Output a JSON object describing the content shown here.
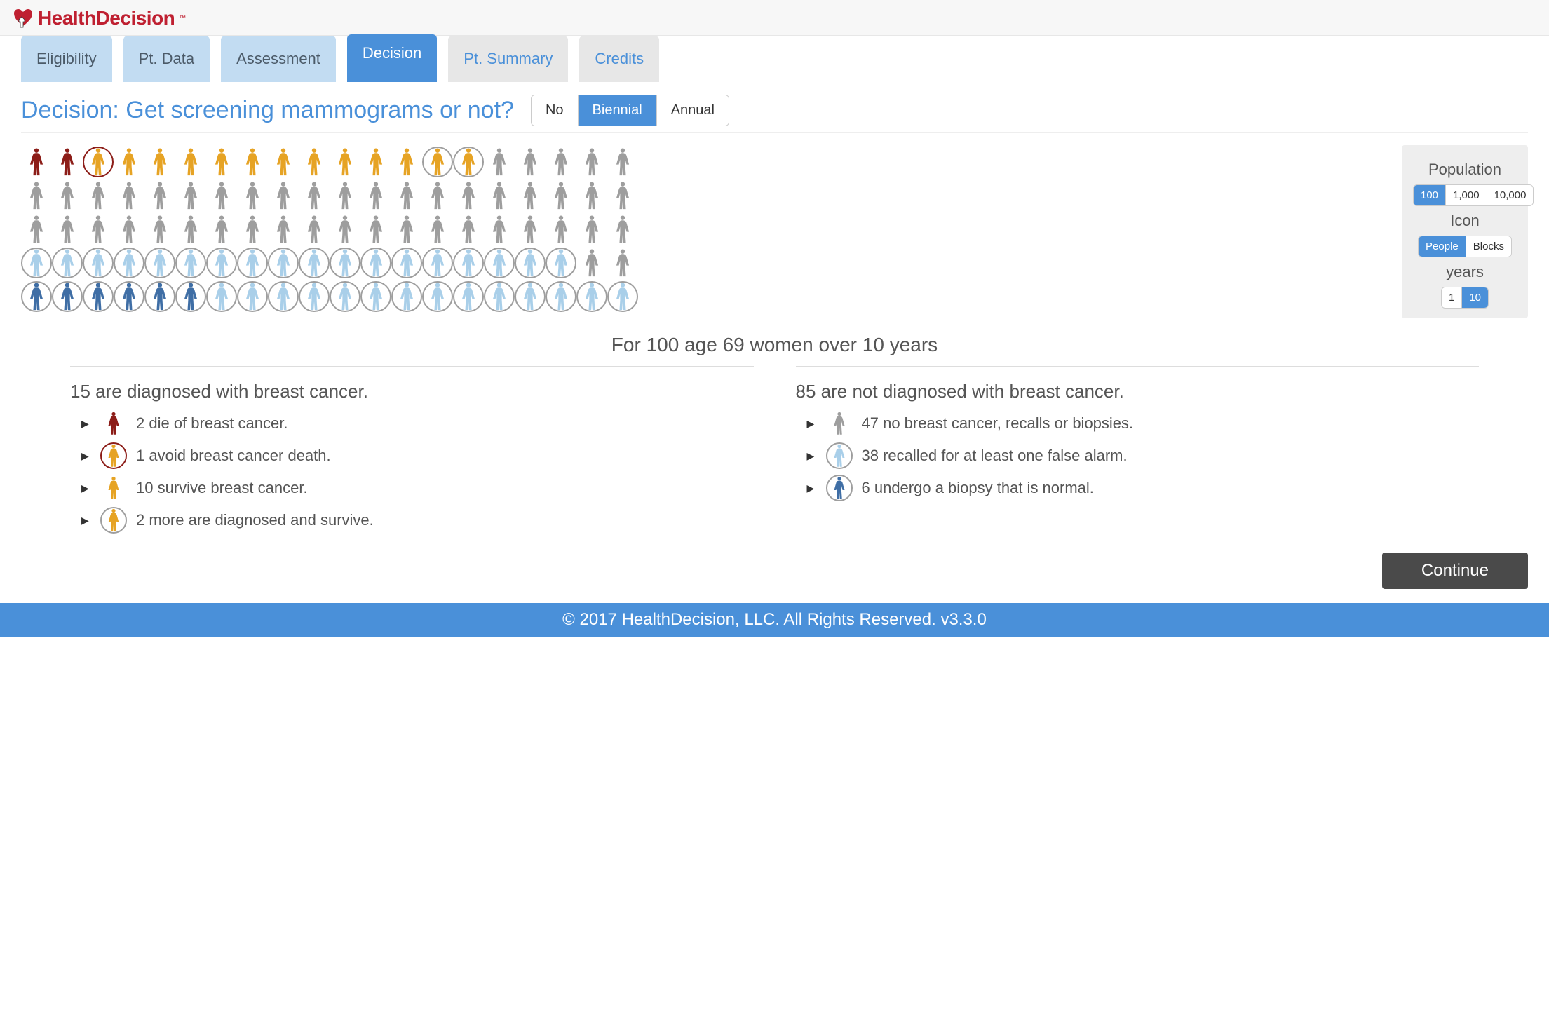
{
  "brand": {
    "name": "HealthDecision",
    "tm": "™"
  },
  "tabs": {
    "eligibility": "Eligibility",
    "ptdata": "Pt. Data",
    "assessment": "Assessment",
    "decision": "Decision",
    "ptsummary": "Pt. Summary",
    "credits": "Credits",
    "active": "decision"
  },
  "headline": "Decision: Get screening mammograms or not?",
  "frequency": {
    "options": {
      "no": "No",
      "biennial": "Biennial",
      "annual": "Annual"
    },
    "selected": "biennial"
  },
  "sidebar": {
    "population": {
      "label": "Population",
      "options": [
        "100",
        "1,000",
        "10,000"
      ],
      "selected": "100"
    },
    "icon": {
      "label": "Icon",
      "options": [
        "People",
        "Blocks"
      ],
      "selected": "People"
    },
    "years": {
      "label": "years",
      "options": [
        "1",
        "10"
      ],
      "selected": "10"
    }
  },
  "colors": {
    "die": "#8c1d18",
    "avoid": "#e6a324",
    "avoid_circle": "#8c1d18",
    "survive": "#e6a324",
    "diag_surv": "#e6a324",
    "none": "#9e9e9e",
    "recall": "#a9cfe9",
    "biopsy": "#3f6ea5"
  },
  "icon_array": {
    "cols": 20,
    "cells": [
      {
        "c": "die"
      },
      {
        "c": "die"
      },
      {
        "c": "avoid",
        "circ": "avoid_circle"
      },
      {
        "c": "survive"
      },
      {
        "c": "survive"
      },
      {
        "c": "survive"
      },
      {
        "c": "survive"
      },
      {
        "c": "survive"
      },
      {
        "c": "survive"
      },
      {
        "c": "survive"
      },
      {
        "c": "survive"
      },
      {
        "c": "survive"
      },
      {
        "c": "survive"
      },
      {
        "c": "diag_surv",
        "circ": "none"
      },
      {
        "c": "diag_surv",
        "circ": "none"
      },
      {
        "c": "none"
      },
      {
        "c": "none"
      },
      {
        "c": "none"
      },
      {
        "c": "none"
      },
      {
        "c": "none"
      },
      {
        "c": "none"
      },
      {
        "c": "none"
      },
      {
        "c": "none"
      },
      {
        "c": "none"
      },
      {
        "c": "none"
      },
      {
        "c": "none"
      },
      {
        "c": "none"
      },
      {
        "c": "none"
      },
      {
        "c": "none"
      },
      {
        "c": "none"
      },
      {
        "c": "none"
      },
      {
        "c": "none"
      },
      {
        "c": "none"
      },
      {
        "c": "none"
      },
      {
        "c": "none"
      },
      {
        "c": "none"
      },
      {
        "c": "none"
      },
      {
        "c": "none"
      },
      {
        "c": "none"
      },
      {
        "c": "none"
      },
      {
        "c": "none"
      },
      {
        "c": "none"
      },
      {
        "c": "none"
      },
      {
        "c": "none"
      },
      {
        "c": "none"
      },
      {
        "c": "none"
      },
      {
        "c": "none"
      },
      {
        "c": "none"
      },
      {
        "c": "none"
      },
      {
        "c": "none"
      },
      {
        "c": "none"
      },
      {
        "c": "none"
      },
      {
        "c": "none"
      },
      {
        "c": "none"
      },
      {
        "c": "none"
      },
      {
        "c": "none"
      },
      {
        "c": "none"
      },
      {
        "c": "none"
      },
      {
        "c": "none"
      },
      {
        "c": "none"
      },
      {
        "c": "recall",
        "circ": "none"
      },
      {
        "c": "recall",
        "circ": "none"
      },
      {
        "c": "recall",
        "circ": "none"
      },
      {
        "c": "recall",
        "circ": "none"
      },
      {
        "c": "recall",
        "circ": "none"
      },
      {
        "c": "recall",
        "circ": "none"
      },
      {
        "c": "recall",
        "circ": "none"
      },
      {
        "c": "recall",
        "circ": "none"
      },
      {
        "c": "recall",
        "circ": "none"
      },
      {
        "c": "recall",
        "circ": "none"
      },
      {
        "c": "recall",
        "circ": "none"
      },
      {
        "c": "recall",
        "circ": "none"
      },
      {
        "c": "recall",
        "circ": "none"
      },
      {
        "c": "recall",
        "circ": "none"
      },
      {
        "c": "recall",
        "circ": "none"
      },
      {
        "c": "recall",
        "circ": "none"
      },
      {
        "c": "recall",
        "circ": "none"
      },
      {
        "c": "recall",
        "circ": "none"
      },
      {
        "c": "none"
      },
      {
        "c": "none"
      },
      {
        "c": "biopsy",
        "circ": "none"
      },
      {
        "c": "biopsy",
        "circ": "none"
      },
      {
        "c": "biopsy",
        "circ": "none"
      },
      {
        "c": "biopsy",
        "circ": "none"
      },
      {
        "c": "biopsy",
        "circ": "none"
      },
      {
        "c": "biopsy",
        "circ": "none"
      },
      {
        "c": "recall",
        "circ": "none"
      },
      {
        "c": "recall",
        "circ": "none"
      },
      {
        "c": "recall",
        "circ": "none"
      },
      {
        "c": "recall",
        "circ": "none"
      },
      {
        "c": "recall",
        "circ": "none"
      },
      {
        "c": "recall",
        "circ": "none"
      },
      {
        "c": "recall",
        "circ": "none"
      },
      {
        "c": "recall",
        "circ": "none"
      },
      {
        "c": "recall",
        "circ": "none"
      },
      {
        "c": "recall",
        "circ": "none"
      },
      {
        "c": "recall",
        "circ": "none"
      },
      {
        "c": "recall",
        "circ": "none"
      },
      {
        "c": "recall",
        "circ": "none"
      },
      {
        "c": "recall",
        "circ": "none"
      }
    ]
  },
  "caption": "For 100 age 69 women over 10 years",
  "legend": {
    "left": {
      "head": "15 are diagnosed with breast cancer.",
      "items": [
        {
          "icon": "die",
          "circ": null,
          "text": "2 die of breast cancer."
        },
        {
          "icon": "avoid",
          "circ": "avoid_circle",
          "text": "1 avoid breast cancer death."
        },
        {
          "icon": "survive",
          "circ": null,
          "text": "10 survive breast cancer."
        },
        {
          "icon": "diag_surv",
          "circ": "none",
          "text": "2 more are diagnosed and survive."
        }
      ]
    },
    "right": {
      "head": "85 are not diagnosed with breast cancer.",
      "items": [
        {
          "icon": "none",
          "circ": null,
          "text": "47 no breast cancer, recalls or biopsies."
        },
        {
          "icon": "recall",
          "circ": "none",
          "text": "38 recalled for at least one false alarm."
        },
        {
          "icon": "biopsy",
          "circ": "none",
          "text": "6 undergo a biopsy that is normal."
        }
      ]
    }
  },
  "continue": "Continue",
  "footer": "© 2017 HealthDecision, LLC. All Rights Reserved. v3.3.0"
}
